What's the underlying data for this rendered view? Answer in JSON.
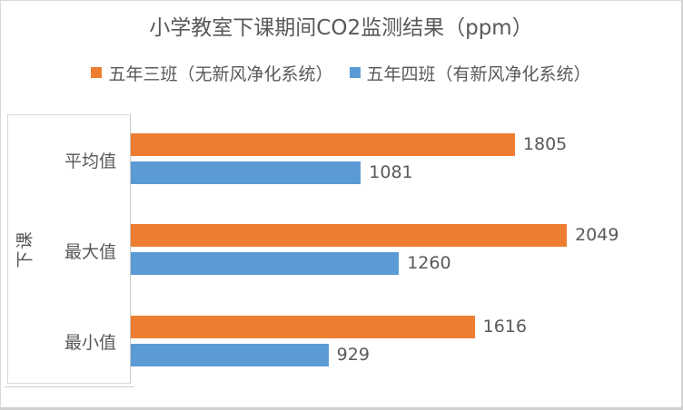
{
  "chart_data": {
    "type": "bar",
    "orientation": "horizontal",
    "title": "小学教室下课期间CO2监测结果（ppm）",
    "group_label": "下课",
    "categories": [
      "平均值",
      "最大值",
      "最小值"
    ],
    "series": [
      {
        "name": "五年三班（无新风净化系统）",
        "color": "#ED7D31",
        "values": [
          1805,
          2049,
          1616
        ]
      },
      {
        "name": "五年四班（有新风净化系统）",
        "color": "#5B9BD5",
        "values": [
          1081,
          1260,
          929
        ]
      }
    ],
    "data_labels": [
      {
        "series": "五年三班（无新风净化系统）",
        "values": [
          "1805",
          "2049",
          "1616"
        ]
      },
      {
        "series": "五年四班（有新风净化系统）",
        "values": [
          "1081",
          "1260",
          "929"
        ]
      }
    ],
    "legend_position": "top",
    "value_axis": {
      "min": 0,
      "implied_max": 2500,
      "visible": false
    },
    "gridlines": false,
    "colors": {
      "series1": "#ED7D31",
      "series2": "#5B9BD5",
      "text": "#595959",
      "axis_box_border": "#D9D9D9",
      "chart_border": "#D9D9D9"
    }
  }
}
